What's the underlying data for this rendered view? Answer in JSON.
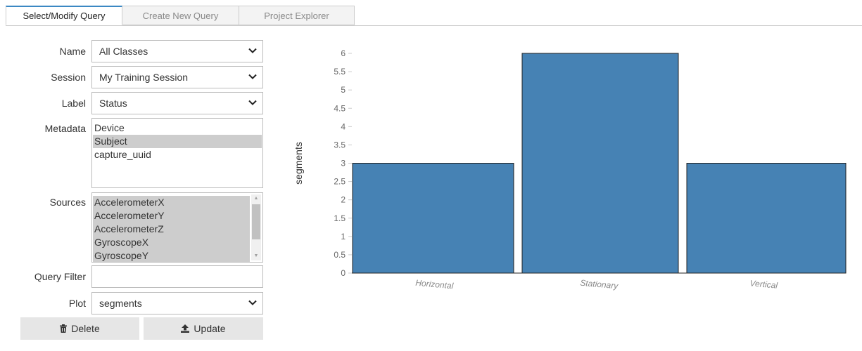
{
  "tabs": [
    {
      "label": "Select/Modify Query",
      "active": true
    },
    {
      "label": "Create New Query",
      "active": false
    },
    {
      "label": "Project Explorer",
      "active": false
    }
  ],
  "form": {
    "name": {
      "label": "Name",
      "value": "All Classes"
    },
    "session": {
      "label": "Session",
      "value": "My Training Session"
    },
    "label": {
      "label": "Label",
      "value": "Status"
    },
    "metadata": {
      "label": "Metadata",
      "options": [
        {
          "text": "Device",
          "selected": false
        },
        {
          "text": "Subject",
          "selected": true
        },
        {
          "text": "capture_uuid",
          "selected": false
        }
      ]
    },
    "sources": {
      "label": "Sources",
      "options": [
        {
          "text": "AccelerometerX",
          "selected": true
        },
        {
          "text": "AccelerometerY",
          "selected": true
        },
        {
          "text": "AccelerometerZ",
          "selected": true
        },
        {
          "text": "GyroscopeX",
          "selected": true
        },
        {
          "text": "GyroscopeY",
          "selected": true
        }
      ]
    },
    "query_filter": {
      "label": "Query Filter",
      "value": ""
    },
    "plot": {
      "label": "Plot",
      "value": "segments"
    }
  },
  "buttons": {
    "delete": {
      "label": "Delete",
      "icon": "trash-icon"
    },
    "update": {
      "label": "Update",
      "icon": "upload-icon"
    }
  },
  "chart_data": {
    "type": "bar",
    "categories": [
      "Horizontal",
      "Stationary",
      "Vertical"
    ],
    "values": [
      3,
      6,
      3
    ],
    "ylabel": "segments",
    "xlabel": "",
    "ylim": [
      0,
      6
    ],
    "yticks": [
      "0",
      "0.5",
      "1",
      "1.5",
      "2",
      "2.5",
      "3",
      "3.5",
      "4",
      "4.5",
      "5",
      "5.5",
      "6"
    ],
    "bar_color": "#4682b4",
    "grid": false
  },
  "colors": {
    "accent": "#3b88c3",
    "selected_option": "#cdcdcd",
    "button_bg": "#e6e6e6"
  }
}
